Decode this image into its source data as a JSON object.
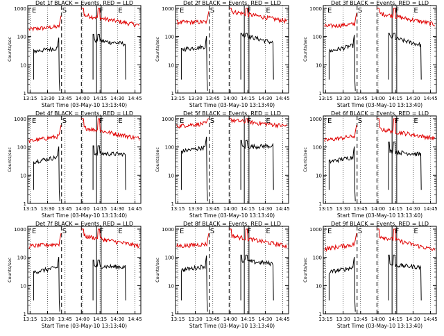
{
  "colors": {
    "events": "#000000",
    "lld": "#e00000",
    "axis": "#000000"
  },
  "chart_data": [
    {
      "type": "line",
      "title": "Det 1f BLACK = Events, RED = LLD",
      "xlabel": "Start Time (03-May-10 13:13:40)",
      "ylabel": "Counts/sec",
      "xticks": [
        "13:15",
        "13:30",
        "13:45",
        "14:00",
        "14:15",
        "14:30",
        "14:45"
      ],
      "yticks": [
        "1",
        "10",
        "100",
        "1000"
      ],
      "ylim": [
        1,
        1000
      ],
      "yscale": "log",
      "markers": [
        "E",
        "S",
        "F",
        "E"
      ],
      "series": [
        {
          "color": "#e00000",
          "segments": [
            {
              "t0": "13:14",
              "t1": "13:42",
              "v0": 180,
              "v1": 230,
              "spike": 1000
            },
            {
              "t0": "13:59",
              "t1": "14:49",
              "v0": 600,
              "v1": 250,
              "spike": 1000
            }
          ]
        },
        {
          "color": "#000000",
          "segments": [
            {
              "t0": "13:18",
              "t1": "13:40",
              "v0": 30,
              "v1": 40,
              "spike": 100
            },
            {
              "t0": "14:09",
              "t1": "14:37",
              "v0": 75,
              "v1": 55,
              "spike": 120
            }
          ]
        }
      ]
    },
    {
      "type": "line",
      "title": "Det 2f BLACK = Events, RED = LLD",
      "xlabel": "Start Time (03-May-10 13:13:40)",
      "ylabel": "Counts/sec",
      "xticks": [
        "13:15",
        "13:30",
        "13:45",
        "14:00",
        "14:15",
        "14:30",
        "14:45"
      ],
      "yticks": [
        "1",
        "10",
        "100",
        "1000"
      ],
      "ylim": [
        1,
        1000
      ],
      "yscale": "log",
      "markers": [
        "E",
        "S",
        "F",
        "E"
      ],
      "series": [
        {
          "color": "#e00000",
          "segments": [
            {
              "t0": "13:14",
              "t1": "13:42",
              "v0": 320,
              "v1": 330,
              "spike": 1000
            },
            {
              "t0": "13:59",
              "t1": "14:49",
              "v0": 800,
              "v1": 350,
              "spike": 1000
            }
          ]
        },
        {
          "color": "#000000",
          "segments": [
            {
              "t0": "13:18",
              "t1": "13:40",
              "v0": 35,
              "v1": 45,
              "spike": 100
            },
            {
              "t0": "14:09",
              "t1": "14:37",
              "v0": 120,
              "v1": 60,
              "spike": 130
            }
          ]
        }
      ]
    },
    {
      "type": "line",
      "title": "Det 3f BLACK = Events, RED = LLD",
      "xlabel": "Start Time (03-May-10 13:13:40)",
      "ylabel": "Counts/sec",
      "xticks": [
        "13:15",
        "13:30",
        "13:45",
        "14:00",
        "14:15",
        "14:30",
        "14:45"
      ],
      "yticks": [
        "1",
        "10",
        "100",
        "1000"
      ],
      "ylim": [
        1,
        1000
      ],
      "yscale": "log",
      "markers": [
        "E",
        "S",
        "F",
        "E"
      ],
      "series": [
        {
          "color": "#e00000",
          "segments": [
            {
              "t0": "13:14",
              "t1": "13:42",
              "v0": 230,
              "v1": 280,
              "spike": 1000
            },
            {
              "t0": "13:59",
              "t1": "14:49",
              "v0": 700,
              "v1": 270,
              "spike": 1000
            }
          ]
        },
        {
          "color": "#000000",
          "segments": [
            {
              "t0": "13:18",
              "t1": "13:40",
              "v0": 30,
              "v1": 50,
              "spike": 100
            },
            {
              "t0": "14:09",
              "t1": "14:37",
              "v0": 100,
              "v1": 50,
              "spike": 130
            }
          ]
        }
      ]
    },
    {
      "type": "line",
      "title": "Det 4f BLACK = Events, RED = LLD",
      "xlabel": "Start Time (03-May-10 13:13:40)",
      "ylabel": "Counts/sec",
      "xticks": [
        "13:15",
        "13:30",
        "13:45",
        "14:00",
        "14:15",
        "14:30",
        "14:45"
      ],
      "yticks": [
        "1",
        "10",
        "100",
        "1000"
      ],
      "ylim": [
        1,
        1000
      ],
      "yscale": "log",
      "markers": [
        "E",
        "S",
        "F",
        "E"
      ],
      "series": [
        {
          "color": "#e00000",
          "segments": [
            {
              "t0": "13:14",
              "t1": "13:42",
              "v0": 160,
              "v1": 250,
              "spike": 1000
            },
            {
              "t0": "13:59",
              "t1": "14:49",
              "v0": 500,
              "v1": 200,
              "spike": 1000
            }
          ]
        },
        {
          "color": "#000000",
          "segments": [
            {
              "t0": "13:18",
              "t1": "13:40",
              "v0": 30,
              "v1": 45,
              "spike": 100
            },
            {
              "t0": "14:09",
              "t1": "14:37",
              "v0": 60,
              "v1": 55,
              "spike": 110
            }
          ]
        }
      ]
    },
    {
      "type": "line",
      "title": "Det 5f BLACK = Events, RED = LLD",
      "xlabel": "Start Time (03-May-10 13:13:40)",
      "ylabel": "Counts/sec",
      "xticks": [
        "13:15",
        "13:30",
        "13:45",
        "14:00",
        "14:15",
        "14:30",
        "14:45"
      ],
      "yticks": [
        "1",
        "10",
        "100",
        "1000"
      ],
      "ylim": [
        1,
        1000
      ],
      "yscale": "log",
      "markers": [
        "E",
        "S",
        "F",
        "E"
      ],
      "series": [
        {
          "color": "#e00000",
          "segments": [
            {
              "t0": "13:14",
              "t1": "13:42",
              "v0": 550,
              "v1": 700,
              "spike": 1000
            },
            {
              "t0": "13:59",
              "t1": "14:49",
              "v0": 900,
              "v1": 550,
              "spike": 1000
            }
          ]
        },
        {
          "color": "#000000",
          "segments": [
            {
              "t0": "13:18",
              "t1": "13:40",
              "v0": 70,
              "v1": 100,
              "spike": 100
            },
            {
              "t0": "14:09",
              "t1": "14:37",
              "v0": 100,
              "v1": 110,
              "spike": 170
            }
          ]
        }
      ]
    },
    {
      "type": "line",
      "title": "Det 6f BLACK = Events, RED = LLD",
      "xlabel": "Start Time (03-May-10 13:13:40)",
      "ylabel": "Counts/sec",
      "xticks": [
        "13:15",
        "13:30",
        "13:45",
        "14:00",
        "14:15",
        "14:30",
        "14:45"
      ],
      "yticks": [
        "1",
        "10",
        "100",
        "1000"
      ],
      "ylim": [
        1,
        1000
      ],
      "yscale": "log",
      "markers": [
        "E",
        "S",
        "F",
        "E"
      ],
      "series": [
        {
          "color": "#e00000",
          "segments": [
            {
              "t0": "13:14",
              "t1": "13:42",
              "v0": 170,
              "v1": 250,
              "spike": 1000
            },
            {
              "t0": "13:59",
              "t1": "14:49",
              "v0": 450,
              "v1": 200,
              "spike": 1000
            }
          ]
        },
        {
          "color": "#000000",
          "segments": [
            {
              "t0": "13:18",
              "t1": "13:40",
              "v0": 30,
              "v1": 45,
              "spike": 100
            },
            {
              "t0": "14:09",
              "t1": "14:37",
              "v0": 70,
              "v1": 55,
              "spike": 150
            }
          ]
        }
      ]
    },
    {
      "type": "line",
      "title": "Det 7f BLACK = Events, RED = LLD",
      "xlabel": "Start Time (03-May-10 13:13:40)",
      "ylabel": "Counts/sec",
      "xticks": [
        "13:15",
        "13:30",
        "13:45",
        "14:00",
        "14:15",
        "14:30",
        "14:45"
      ],
      "yticks": [
        "1",
        "10",
        "100",
        "1000"
      ],
      "ylim": [
        1,
        1000
      ],
      "yscale": "log",
      "markers": [
        "E",
        "S",
        "F",
        "E"
      ],
      "series": [
        {
          "color": "#e00000",
          "segments": [
            {
              "t0": "13:14",
              "t1": "13:42",
              "v0": 250,
              "v1": 300,
              "spike": 1000
            },
            {
              "t0": "13:59",
              "t1": "14:49",
              "v0": 600,
              "v1": 250,
              "spike": 1000
            }
          ]
        },
        {
          "color": "#000000",
          "segments": [
            {
              "t0": "13:18",
              "t1": "13:40",
              "v0": 30,
              "v1": 45,
              "spike": 100
            },
            {
              "t0": "14:09",
              "t1": "14:37",
              "v0": 50,
              "v1": 45,
              "spike": 80
            }
          ]
        }
      ]
    },
    {
      "type": "line",
      "title": "Det 8f BLACK = Events, RED = LLD",
      "xlabel": "Start Time (03-May-10 13:13:40)",
      "ylabel": "Counts/sec",
      "xticks": [
        "13:15",
        "13:30",
        "13:45",
        "14:00",
        "14:15",
        "14:30",
        "14:45"
      ],
      "yticks": [
        "1",
        "10",
        "100",
        "1000"
      ],
      "ylim": [
        1,
        1000
      ],
      "yscale": "log",
      "markers": [
        "E",
        "S",
        "F",
        "E"
      ],
      "series": [
        {
          "color": "#e00000",
          "segments": [
            {
              "t0": "13:14",
              "t1": "13:42",
              "v0": 250,
              "v1": 300,
              "spike": 1000
            },
            {
              "t0": "13:59",
              "t1": "14:49",
              "v0": 600,
              "v1": 250,
              "spike": 1000
            }
          ]
        },
        {
          "color": "#000000",
          "segments": [
            {
              "t0": "13:18",
              "t1": "13:40",
              "v0": 35,
              "v1": 50,
              "spike": 100
            },
            {
              "t0": "14:09",
              "t1": "14:37",
              "v0": 75,
              "v1": 60,
              "spike": 120
            }
          ]
        }
      ]
    },
    {
      "type": "line",
      "title": "Det 9f BLACK = Events, RED = LLD",
      "xlabel": "Start Time (03-May-10 13:13:40)",
      "ylabel": "Counts/sec",
      "xticks": [
        "13:15",
        "13:30",
        "13:45",
        "14:00",
        "14:15",
        "14:30",
        "14:45"
      ],
      "yticks": [
        "1",
        "10",
        "100",
        "1000"
      ],
      "ylim": [
        1,
        1000
      ],
      "yscale": "log",
      "markers": [
        "E",
        "S",
        "F",
        "E"
      ],
      "series": [
        {
          "color": "#e00000",
          "segments": [
            {
              "t0": "13:14",
              "t1": "13:42",
              "v0": 200,
              "v1": 300,
              "spike": 1000
            },
            {
              "t0": "13:59",
              "t1": "14:49",
              "v0": 600,
              "v1": 180,
              "spike": 1000
            }
          ]
        },
        {
          "color": "#000000",
          "segments": [
            {
              "t0": "13:18",
              "t1": "13:40",
              "v0": 30,
              "v1": 45,
              "spike": 100
            },
            {
              "t0": "14:09",
              "t1": "14:37",
              "v0": 55,
              "v1": 45,
              "spike": 120
            }
          ]
        }
      ]
    }
  ]
}
